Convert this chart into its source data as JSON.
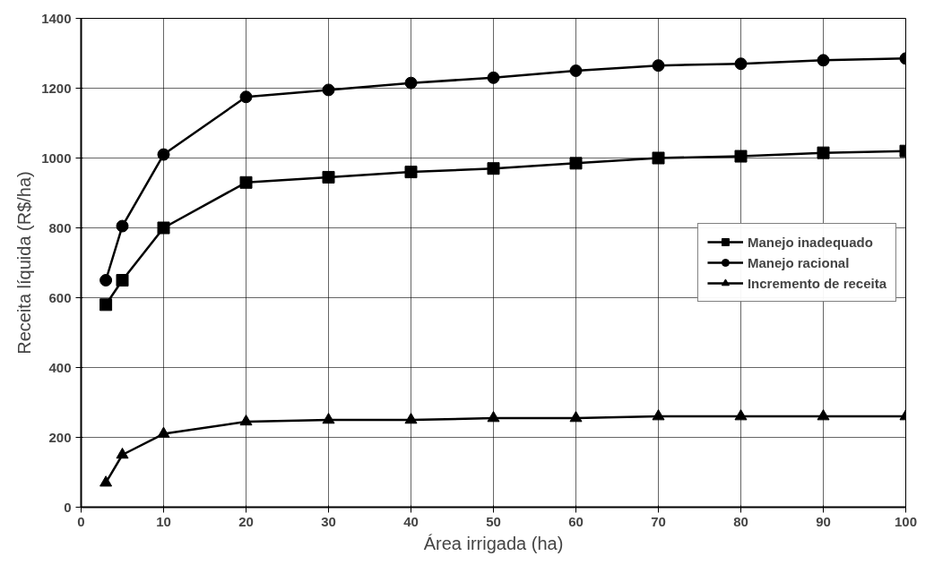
{
  "chart_data": {
    "type": "line",
    "xlabel": "Área irrigada (ha)",
    "ylabel": "Receita líquida (R$/ha)",
    "xlim": [
      0,
      100
    ],
    "xticks": [
      0,
      10,
      20,
      30,
      40,
      50,
      60,
      70,
      80,
      90,
      100
    ],
    "ylim": [
      0,
      1400
    ],
    "yticks": [
      0,
      200,
      400,
      600,
      800,
      1000,
      1200,
      1400
    ],
    "grid": true,
    "legend": "right",
    "line_style": "solid",
    "x": [
      3,
      5,
      10,
      20,
      30,
      40,
      50,
      60,
      70,
      80,
      90,
      100
    ],
    "series": [
      {
        "name": "Manejo inadequado",
        "color": "#000000",
        "marker": "square",
        "values": [
          580,
          650,
          800,
          930,
          945,
          960,
          970,
          985,
          1000,
          1005,
          1015,
          1020
        ]
      },
      {
        "name": "Manejo racional",
        "color": "#000000",
        "marker": "circle",
        "values": [
          650,
          805,
          1010,
          1175,
          1195,
          1215,
          1230,
          1250,
          1265,
          1270,
          1280,
          1285
        ]
      },
      {
        "name": "Incremento de receita",
        "color": "#000000",
        "marker": "triangle",
        "values": [
          70,
          150,
          210,
          245,
          250,
          250,
          255,
          255,
          260,
          260,
          260,
          260
        ]
      }
    ]
  }
}
